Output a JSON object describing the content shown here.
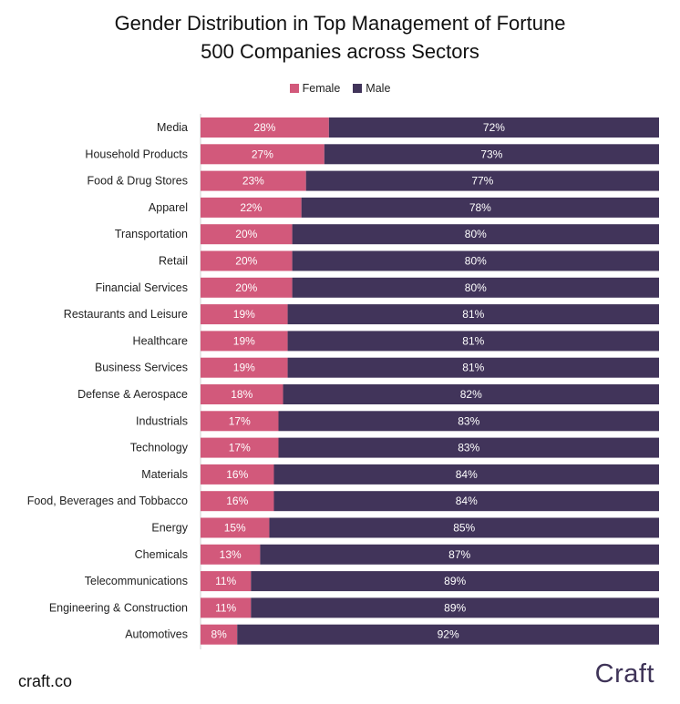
{
  "chart_data": {
    "type": "bar",
    "orientation": "horizontal",
    "stacked": true,
    "title": "Gender Distribution in Top Management of Fortune 500 Companies across Sectors",
    "title_lines": [
      "Gender Distribution in Top Management of Fortune",
      "500 Companies across Sectors"
    ],
    "legend_position": "top-center",
    "xlim": [
      0,
      100
    ],
    "grid": false,
    "categories": [
      "Media",
      "Household Products",
      "Food & Drug Stores",
      "Apparel",
      "Transportation",
      "Retail",
      "Financial Services",
      "Restaurants and Leisure",
      "Healthcare",
      "Business Services",
      "Defense & Aerospace",
      "Industrials",
      "Technology",
      "Materials",
      "Food, Beverages and Tobbacco",
      "Energy",
      "Chemicals",
      "Telecommunications",
      "Engineering & Construction",
      "Automotives"
    ],
    "series": [
      {
        "name": "Female",
        "color": "#d2597b",
        "values": [
          28,
          27,
          23,
          22,
          20,
          20,
          20,
          19,
          19,
          19,
          18,
          17,
          17,
          16,
          16,
          15,
          13,
          11,
          11,
          8
        ],
        "labels": [
          "28%",
          "27%",
          "23%",
          "22%",
          "20%",
          "20%",
          "20%",
          "19%",
          "19%",
          "19%",
          "18%",
          "17%",
          "17%",
          "16%",
          "16%",
          "15%",
          "13%",
          "11%",
          "11%",
          "8%"
        ]
      },
      {
        "name": "Male",
        "color": "#41345a",
        "values": [
          72,
          73,
          77,
          78,
          80,
          80,
          80,
          81,
          81,
          81,
          82,
          83,
          83,
          84,
          84,
          85,
          87,
          89,
          89,
          92
        ],
        "labels": [
          "72%",
          "73%",
          "77%",
          "78%",
          "80%",
          "80%",
          "80%",
          "81%",
          "81%",
          "81%",
          "82%",
          "83%",
          "83%",
          "84%",
          "84%",
          "85%",
          "87%",
          "89%",
          "89%",
          "92%"
        ]
      }
    ]
  },
  "footer": {
    "source": "craft.co",
    "logo": "Craft"
  }
}
